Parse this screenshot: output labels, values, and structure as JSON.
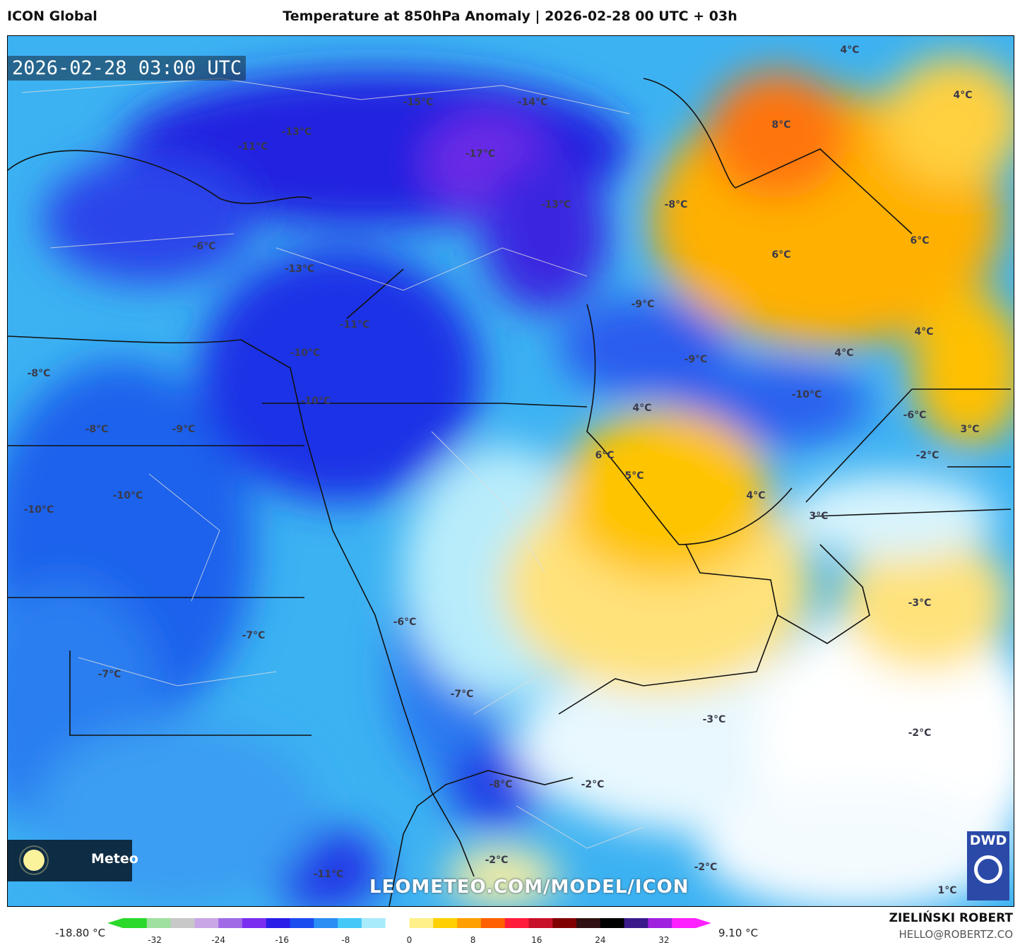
{
  "header": {
    "model": "ICON Global",
    "title": "Temperature at 850hPa Anomaly | 2026-02-28 00 UTC + 03h"
  },
  "map": {
    "timestamp": "2026-02-28 03:00 UTC",
    "watermark": "LEOMETEO.COM/MODEL/ICON",
    "leo_logo_text": "Meteo",
    "dwd_logo_text": "DWD",
    "labels": [
      "4°C",
      "4°C",
      "-15°C",
      "-14°C",
      "-13°C",
      "-11°C",
      "-17°C",
      "8°C",
      "-13°C",
      "-8°C",
      "-6°C",
      "-13°C",
      "6°C",
      "6°C",
      "-11°C",
      "-9°C",
      "-10°C",
      "4°C",
      "-8°C",
      "-9°C",
      "-10°C",
      "4°C",
      "-10°C",
      "-8°C",
      "-9°C",
      "4°C",
      "-6°C",
      "3°C",
      "6°C",
      "-2°C",
      "5°C",
      "-10°C",
      "-10°C",
      "4°C",
      "3°C",
      "-3°C",
      "-7°C",
      "-6°C",
      "-7°C",
      "-7°C",
      "-3°C",
      "-2°C",
      "-8°C",
      "-2°C",
      "-2°C",
      "-2°C",
      "-11°C",
      "1°C"
    ]
  },
  "colorbar": {
    "min_label": "-18.80 °C",
    "max_label": "9.10 °C",
    "ticks": [
      "-32",
      "-24",
      "-16",
      "-8",
      "0",
      "8",
      "16",
      "24",
      "32"
    ],
    "colors": [
      "#2bd92b",
      "#9fe09f",
      "#c8c8c8",
      "#c9a6e6",
      "#a06ae6",
      "#7a2ef0",
      "#2a1ee8",
      "#1a4cf0",
      "#2a8ef4",
      "#44c8f8",
      "#a8ecfb",
      "#ffffff",
      "#fff08a",
      "#ffd000",
      "#ffa000",
      "#ff6000",
      "#ff1c3a",
      "#c8102a",
      "#800000",
      "#301010",
      "#000000",
      "#3a1a8a",
      "#a020e0",
      "#ff20ff"
    ]
  },
  "footer": {
    "author": "ZIELIŃSKI ROBERT",
    "email": "HELLO@ROBERTZ.CO"
  }
}
